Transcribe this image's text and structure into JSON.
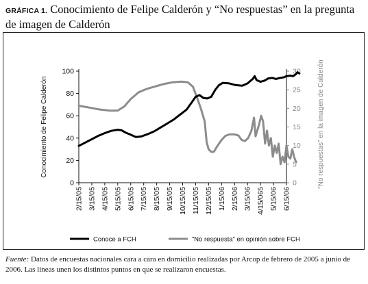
{
  "caption": {
    "label": "GRÁFICA 1.",
    "text": "Conocimiento de Felipe Calderón y “No respuestas” en la pregunta de imagen de Calderón"
  },
  "footer": {
    "label": "Fuente:",
    "text": "Datos de encuestas nacionales cara a cara en domicilio realizadas por Arcop de febrero de 2005 a junio de 2006. Las líneas unen los distintos puntos en que se realizaron encuestas."
  },
  "chart_data": {
    "type": "line",
    "x_tick_labels": [
      "2/15/05",
      "3/15/05",
      "4/15/05",
      "5/15/05",
      "6/15/05",
      "7/15/05",
      "8/15/05",
      "9/15/05",
      "10/15/05",
      "11/15/05",
      "12/15/05",
      "1/15/06",
      "2/15/06",
      "3/15/06",
      "4/15/065",
      "5/15/06",
      "6/15/06"
    ],
    "y_left": {
      "label": "Conocimiento de Felipe Calderón",
      "ticks": [
        0,
        20,
        40,
        60,
        80,
        100
      ],
      "range": [
        0,
        100
      ]
    },
    "y_right": {
      "label": "“No respuestas” en la imagen de Calderón",
      "ticks": [
        0,
        5,
        10,
        15,
        20,
        25,
        30
      ],
      "range": [
        0,
        30
      ]
    },
    "grid": false,
    "legend_position": "bottom",
    "series": [
      {
        "name": "Conoce a FCH",
        "axis": "left",
        "color": "#000000",
        "points": [
          [
            0,
            33
          ],
          [
            0.5,
            36
          ],
          [
            1,
            39
          ],
          [
            1.5,
            42
          ],
          [
            2,
            44.5
          ],
          [
            2.5,
            46.5
          ],
          [
            3,
            47.5
          ],
          [
            3.3,
            47
          ],
          [
            3.6,
            45
          ],
          [
            4,
            43
          ],
          [
            4.4,
            41
          ],
          [
            4.8,
            41.5
          ],
          [
            5.3,
            43.5
          ],
          [
            5.8,
            46
          ],
          [
            6.3,
            49.5
          ],
          [
            6.8,
            53
          ],
          [
            7.3,
            56.5
          ],
          [
            7.8,
            61
          ],
          [
            8.3,
            65.5
          ],
          [
            8.7,
            72
          ],
          [
            9.0,
            77
          ],
          [
            9.3,
            78.5
          ],
          [
            9.6,
            76
          ],
          [
            9.9,
            75.5
          ],
          [
            10.2,
            77
          ],
          [
            10.5,
            83
          ],
          [
            10.8,
            87.5
          ],
          [
            11.1,
            89.5
          ],
          [
            11.6,
            89
          ],
          [
            12.1,
            87.5
          ],
          [
            12.6,
            87
          ],
          [
            13.0,
            89
          ],
          [
            13.4,
            93
          ],
          [
            13.55,
            95.5
          ],
          [
            13.7,
            92
          ],
          [
            14.0,
            90.5
          ],
          [
            14.3,
            91.5
          ],
          [
            14.6,
            93.5
          ],
          [
            14.9,
            94
          ],
          [
            15.2,
            93
          ],
          [
            15.5,
            94
          ],
          [
            15.8,
            94.5
          ],
          [
            16.0,
            95.5
          ],
          [
            16.3,
            96
          ],
          [
            16.5,
            95.5
          ],
          [
            16.7,
            97
          ],
          [
            16.85,
            99
          ],
          [
            17.0,
            98
          ]
        ]
      },
      {
        "name": "“No respuesta” en opinión sobre FCH",
        "axis": "right",
        "color": "#8c8c8c",
        "points": [
          [
            0,
            20.7
          ],
          [
            0.8,
            20.2
          ],
          [
            1.6,
            19.7
          ],
          [
            2.4,
            19.4
          ],
          [
            3.0,
            19.4
          ],
          [
            3.5,
            20.5
          ],
          [
            4.0,
            22.5
          ],
          [
            4.6,
            24.3
          ],
          [
            5.2,
            25.2
          ],
          [
            5.8,
            25.8
          ],
          [
            6.5,
            26.5
          ],
          [
            7.2,
            27
          ],
          [
            7.9,
            27.2
          ],
          [
            8.4,
            27
          ],
          [
            8.8,
            25.8
          ],
          [
            9.1,
            23
          ],
          [
            9.4,
            20
          ],
          [
            9.7,
            16.5
          ],
          [
            9.85,
            11
          ],
          [
            10.0,
            9
          ],
          [
            10.2,
            8.3
          ],
          [
            10.4,
            8.3
          ],
          [
            10.7,
            10
          ],
          [
            11.0,
            11.5
          ],
          [
            11.3,
            12.6
          ],
          [
            11.6,
            13
          ],
          [
            12.0,
            13
          ],
          [
            12.3,
            12.7
          ],
          [
            12.55,
            11.5
          ],
          [
            12.8,
            11.2
          ],
          [
            13.05,
            12
          ],
          [
            13.3,
            14
          ],
          [
            13.5,
            17.5
          ],
          [
            13.62,
            12.5
          ],
          [
            13.75,
            14
          ],
          [
            13.9,
            15.8
          ],
          [
            14.05,
            18
          ],
          [
            14.2,
            16.5
          ],
          [
            14.35,
            10.5
          ],
          [
            14.5,
            14
          ],
          [
            14.65,
            10
          ],
          [
            14.8,
            12
          ],
          [
            14.95,
            7
          ],
          [
            15.1,
            10
          ],
          [
            15.25,
            8
          ],
          [
            15.4,
            10.5
          ],
          [
            15.55,
            5
          ],
          [
            15.7,
            7
          ],
          [
            15.85,
            5.5
          ],
          [
            16.0,
            10
          ],
          [
            16.15,
            7
          ],
          [
            16.3,
            6.5
          ],
          [
            16.45,
            9
          ],
          [
            16.6,
            6.8
          ],
          [
            16.75,
            5.5
          ]
        ]
      }
    ]
  }
}
